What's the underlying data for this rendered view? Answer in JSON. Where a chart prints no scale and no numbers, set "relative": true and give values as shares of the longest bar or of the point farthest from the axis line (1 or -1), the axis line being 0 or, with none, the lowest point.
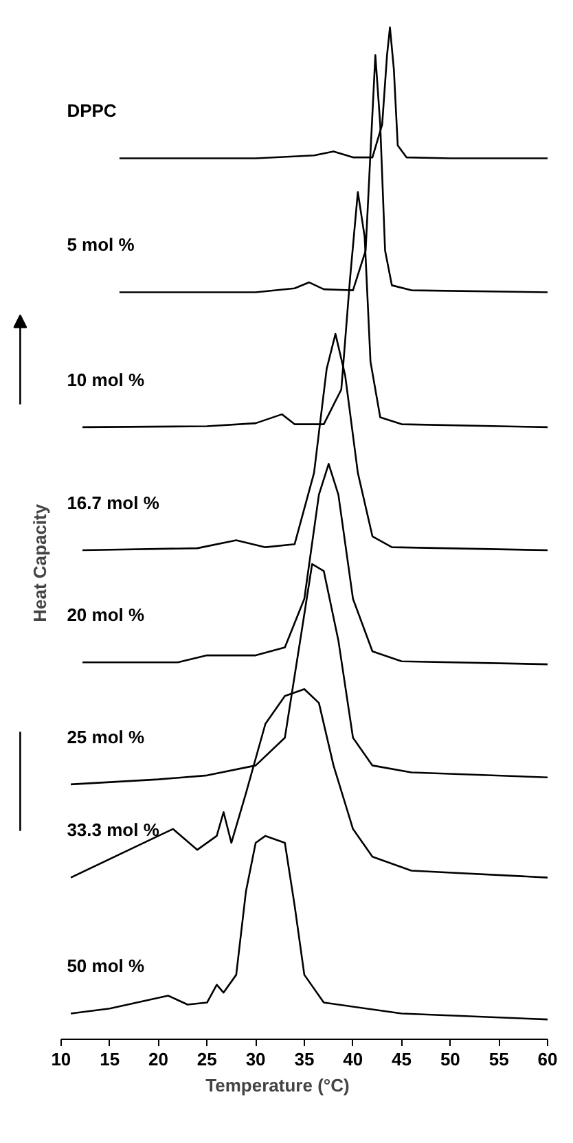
{
  "chart_data": {
    "type": "line",
    "relative": true,
    "xlabel": "Temperature (°C)",
    "ylabel": "Heat Capacity",
    "xlim": [
      10,
      60
    ],
    "xticks": [
      10,
      15,
      20,
      25,
      30,
      35,
      40,
      45,
      50,
      55,
      60
    ],
    "tick_labels": "x",
    "grid": false,
    "marker": "none",
    "line_style": "solid",
    "series": [
      {
        "name": "DPPC",
        "color": "#000000",
        "x": [
          16,
          30,
          36,
          38,
          40,
          42,
          43,
          43.5,
          43.8,
          44.2,
          44.6,
          45.5,
          50,
          60
        ],
        "values": [
          0.868,
          0.868,
          0.871,
          0.875,
          0.869,
          0.869,
          0.902,
          0.972,
          1.0,
          0.958,
          0.881,
          0.869,
          0.868,
          0.868
        ]
      },
      {
        "name": "5 mol  %",
        "color": "#000000",
        "x": [
          16,
          30,
          34,
          35.5,
          37,
          40,
          41.3,
          41.8,
          42.3,
          42.8,
          43.3,
          44,
          46,
          60
        ],
        "values": [
          0.733,
          0.733,
          0.737,
          0.743,
          0.736,
          0.735,
          0.775,
          0.874,
          0.972,
          0.902,
          0.775,
          0.74,
          0.735,
          0.733
        ]
      },
      {
        "name": "10 mol %",
        "color": "#000000",
        "x": [
          12.2,
          25,
          30,
          32.7,
          34,
          37,
          38.8,
          39.7,
          40.5,
          41.2,
          41.8,
          42.8,
          45,
          60
        ],
        "values": [
          0.597,
          0.598,
          0.601,
          0.61,
          0.6,
          0.6,
          0.635,
          0.747,
          0.834,
          0.789,
          0.663,
          0.607,
          0.6,
          0.597
        ]
      },
      {
        "name": "16.7 mol   %",
        "color": "#000000",
        "x": [
          12.2,
          24,
          28,
          31,
          34,
          36,
          37.3,
          38.2,
          39.2,
          40.5,
          42,
          44,
          60
        ],
        "values": [
          0.473,
          0.475,
          0.483,
          0.476,
          0.479,
          0.551,
          0.656,
          0.691,
          0.649,
          0.551,
          0.487,
          0.476,
          0.473
        ]
      },
      {
        "name": "20 mol %",
        "color": "#000000",
        "x": [
          12.2,
          22,
          25,
          30,
          33,
          35,
          36.5,
          37.5,
          38.5,
          40,
          42,
          45,
          60
        ],
        "values": [
          0.36,
          0.36,
          0.367,
          0.367,
          0.375,
          0.424,
          0.529,
          0.56,
          0.529,
          0.424,
          0.371,
          0.361,
          0.358
        ]
      },
      {
        "name": "25 mol %",
        "color": "#000000",
        "x": [
          11,
          20,
          25,
          30,
          33,
          34.8,
          35.8,
          37,
          38.5,
          40,
          42,
          46,
          60
        ],
        "values": [
          0.237,
          0.242,
          0.246,
          0.256,
          0.284,
          0.396,
          0.459,
          0.452,
          0.382,
          0.284,
          0.256,
          0.249,
          0.244
        ]
      },
      {
        "name": "33.3 mol   %",
        "color": "#000000",
        "x": [
          11,
          20,
          21.5,
          24,
          26,
          26.7,
          27.5,
          29,
          31,
          33,
          35,
          36.5,
          38,
          40,
          42,
          46,
          60
        ],
        "values": [
          0.143,
          0.185,
          0.192,
          0.171,
          0.185,
          0.209,
          0.178,
          0.228,
          0.298,
          0.326,
          0.333,
          0.319,
          0.256,
          0.192,
          0.164,
          0.15,
          0.143
        ]
      },
      {
        "name": "50 mol %",
        "color": "#000000",
        "x": [
          11,
          15,
          21,
          23,
          25,
          26,
          26.7,
          28,
          29,
          30,
          31,
          33,
          34,
          35,
          37,
          45,
          60
        ],
        "values": [
          0.006,
          0.011,
          0.024,
          0.015,
          0.017,
          0.035,
          0.027,
          0.045,
          0.129,
          0.178,
          0.185,
          0.178,
          0.115,
          0.045,
          0.017,
          0.006,
          0.0
        ]
      }
    ]
  }
}
